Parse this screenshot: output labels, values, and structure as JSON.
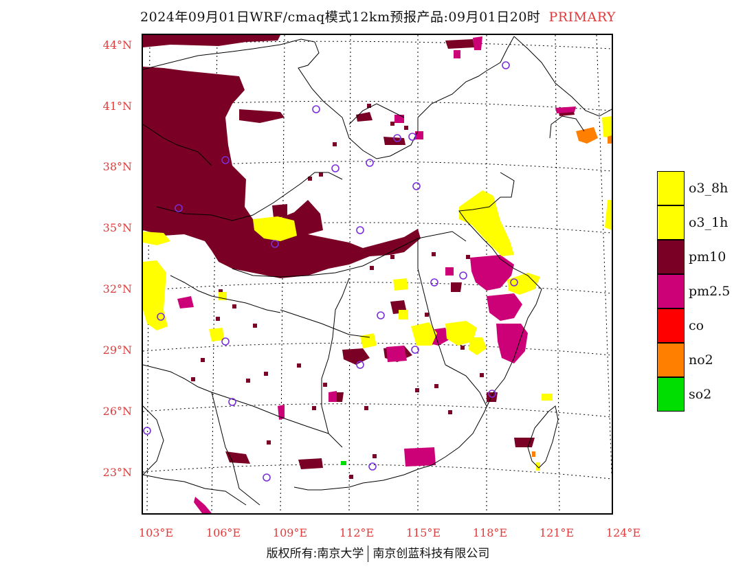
{
  "header": {
    "title": "2024年09月01日WRF/cmaq模式12km预报产品:09月01日20时",
    "tag": "PRIMARY"
  },
  "axes": {
    "lat_labels": [
      "44°N",
      "41°N",
      "38°N",
      "35°N",
      "32°N",
      "29°N",
      "26°N",
      "23°N"
    ],
    "lon_labels": [
      "103°E",
      "106°E",
      "109°E",
      "112°E",
      "115°E",
      "118°E",
      "121°E",
      "124°E"
    ]
  },
  "legend": [
    {
      "label": "o3_8h",
      "color": "#ffff00"
    },
    {
      "label": "o3_1h",
      "color": "#ffff00"
    },
    {
      "label": "pm10",
      "color": "#7a0026"
    },
    {
      "label": "pm2.5",
      "color": "#cc0077"
    },
    {
      "label": "co",
      "color": "#ff0000"
    },
    {
      "label": "no2",
      "color": "#ff7f00"
    },
    {
      "label": "so2",
      "color": "#00dd00"
    }
  ],
  "footer": {
    "left": "版权所有:南京大学",
    "right": "南京创蓝科技有限公司"
  },
  "colors": {
    "pm10": "#7a0026",
    "pm25": "#cc0077",
    "o3": "#ffff00",
    "no2": "#ff7f00",
    "so2": "#00dd00",
    "station": "#7b2fd6",
    "axis_label": "#e23a3a"
  }
}
